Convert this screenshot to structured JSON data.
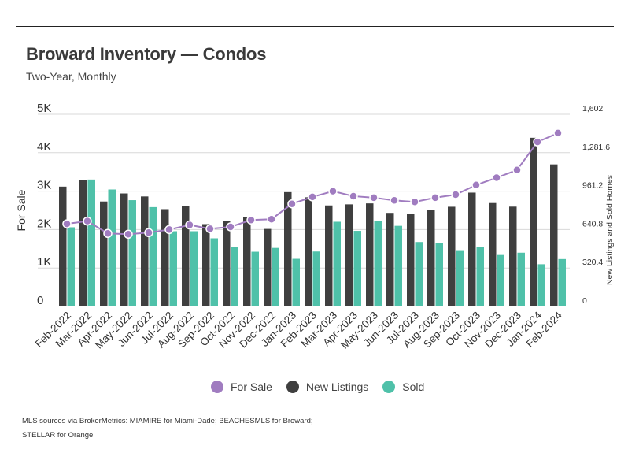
{
  "header": {
    "title": "Broward Inventory — Condos",
    "subtitle": "Two-Year, Monthly"
  },
  "colors": {
    "for_sale": "#a07cc0",
    "new_listings": "#3f3f3f",
    "sold": "#4fc1a9",
    "grid": "#d8d8d8"
  },
  "chart_data": {
    "type": "bar",
    "title": "Broward Inventory — Condos",
    "subtitle": "Two-Year, Monthly",
    "categories": [
      "Feb-2022",
      "Mar-2022",
      "Apr-2022",
      "May-2022",
      "Jun-2022",
      "Jul-2022",
      "Aug-2022",
      "Sep-2022",
      "Oct-2022",
      "Nov-2022",
      "Dec-2022",
      "Jan-2023",
      "Feb-2023",
      "Mar-2023",
      "Apr-2023",
      "May-2023",
      "Jun-2023",
      "Jul-2023",
      "Aug-2023",
      "Sep-2023",
      "Oct-2023",
      "Nov-2023",
      "Dec-2023",
      "Jan-2024",
      "Feb-2024"
    ],
    "series": [
      {
        "name": "For Sale",
        "type": "line",
        "axis": "left",
        "values": [
          2150,
          2220,
          1900,
          1880,
          1920,
          2000,
          2120,
          2020,
          2070,
          2250,
          2270,
          2670,
          2850,
          3000,
          2870,
          2830,
          2760,
          2720,
          2830,
          2910,
          3160,
          3350,
          3550,
          4280,
          4510
        ]
      },
      {
        "name": "New Listings",
        "type": "bar",
        "axis": "right",
        "values": [
          999,
          1057,
          875,
          942,
          917,
          811,
          834,
          686,
          714,
          748,
          646,
          953,
          910,
          842,
          851,
          859,
          780,
          772,
          805,
          831,
          949,
          862,
          832,
          1406,
          1184
        ]
      },
      {
        "name": "Sold",
        "type": "bar",
        "axis": "right",
        "values": [
          660,
          1058,
          975,
          886,
          828,
          627,
          627,
          568,
          493,
          456,
          488,
          397,
          458,
          706,
          630,
          714,
          672,
          537,
          528,
          469,
          493,
          429,
          448,
          352,
          395
        ]
      }
    ],
    "ylabel": "For Sale",
    "y2label": "New Listings and Sold Homes",
    "ylim": [
      0,
      5000
    ],
    "y2lim": [
      0,
      1602
    ],
    "yticks": [
      "0",
      "1K",
      "2K",
      "3K",
      "4K",
      "5K"
    ],
    "y2ticks": [
      "0",
      "320.4",
      "640.8",
      "961.2",
      "1,281.6",
      "1,602"
    ],
    "grid": true,
    "legend_position": "bottom-center"
  },
  "legend": [
    {
      "label": "For Sale"
    },
    {
      "label": "New Listings"
    },
    {
      "label": "Sold"
    }
  ],
  "source": {
    "line1": "MLS sources via BrokerMetrics: MIAMIRE for Miami-Dade; BEACHESMLS for Broward;",
    "line2": "STELLAR for Orange"
  }
}
